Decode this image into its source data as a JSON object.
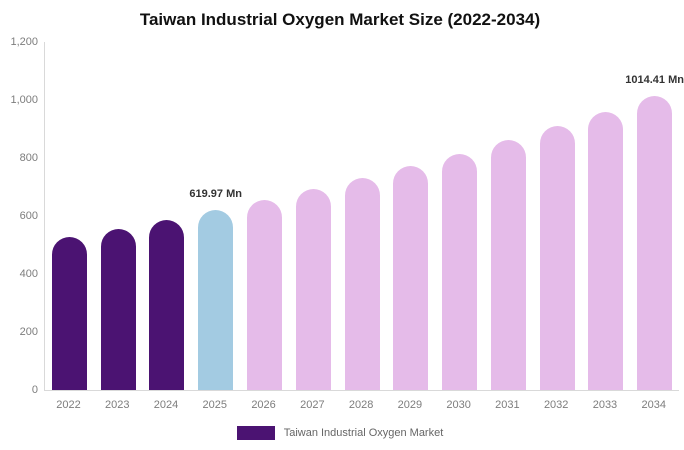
{
  "chart_data": {
    "type": "bar",
    "title": "Taiwan Industrial Oxygen Market Size (2022-2034)",
    "categories": [
      "2022",
      "2023",
      "2024",
      "2025",
      "2026",
      "2027",
      "2028",
      "2029",
      "2030",
      "2031",
      "2032",
      "2033",
      "2034"
    ],
    "values": [
      526,
      556,
      587,
      619.97,
      655,
      692,
      731,
      772,
      815,
      861,
      909,
      960,
      1014.41
    ],
    "unit": "Mn",
    "xlabel": "",
    "ylabel": "",
    "ylim": [
      0,
      1200
    ],
    "yticks": [
      0,
      200,
      400,
      600,
      800,
      1000,
      1200
    ],
    "ytick_labels": [
      "0",
      "200",
      "400",
      "600",
      "800",
      "1,000",
      "1,200"
    ],
    "grid": "off",
    "legend_position": "bottom-center",
    "color_roles": [
      "historical",
      "historical",
      "historical",
      "base_year",
      "forecast",
      "forecast",
      "forecast",
      "forecast",
      "forecast",
      "forecast",
      "forecast",
      "forecast",
      "forecast"
    ],
    "colors": {
      "historical": "#4B1372",
      "base_year": "#A3CBE2",
      "forecast": "#E5BBE9",
      "axis_line": "#D9D9D9",
      "tick_text": "#7D7D7D",
      "title_text": "#111111",
      "annotation_text": "#333333",
      "legend_text": "#666666",
      "background": "#FFFFFF"
    },
    "annotations": [
      {
        "index": 3,
        "text": "619.97 Mn"
      },
      {
        "index": 12,
        "text": "1014.41 Mn"
      }
    ],
    "legend": {
      "items": [
        {
          "label": "Taiwan Industrial Oxygen Market",
          "color_role": "historical"
        }
      ]
    }
  }
}
